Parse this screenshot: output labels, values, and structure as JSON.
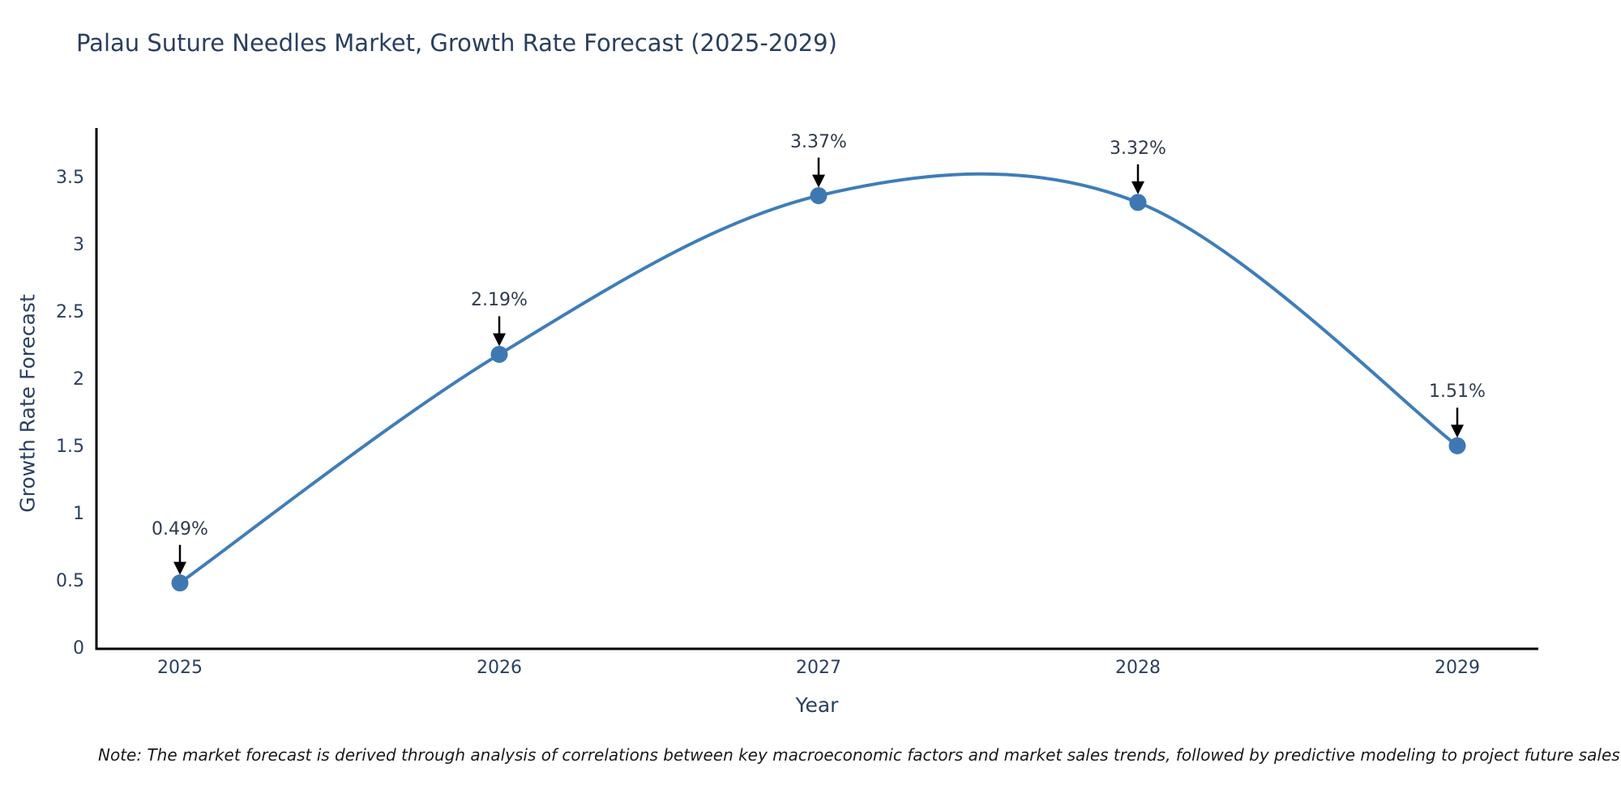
{
  "title": "Palau Suture Needles Market, Growth Rate Forecast (2025-2029)",
  "note": "Note: The market forecast is derived through analysis of correlations between key macroeconomic factors and market sales trends, followed by predictive modeling to project future sales",
  "chart_data": {
    "type": "line",
    "title": "Palau Suture Needles Market, Growth Rate Forecast (2025-2029)",
    "x": [
      2025,
      2026,
      2027,
      2028,
      2029
    ],
    "categories": [
      "2025",
      "2026",
      "2027",
      "2028",
      "2029"
    ],
    "series": [
      {
        "name": "Growth Rate Forecast",
        "values": [
          0.49,
          2.19,
          3.37,
          3.32,
          1.51
        ]
      }
    ],
    "point_labels": [
      "0.49%",
      "2.19%",
      "3.37%",
      "3.32%",
      "1.51%"
    ],
    "xlabel": "Year",
    "ylabel": "Growth Rate Forecast",
    "ylim": [
      0,
      3.9
    ],
    "yticks": [
      0,
      0.5,
      1,
      1.5,
      2,
      2.5,
      3,
      3.5
    ],
    "ytick_labels": [
      "0",
      "0.5",
      "1",
      "1.5",
      "2",
      "2.5",
      "3",
      "3.5"
    ],
    "grid": false,
    "legend": "none",
    "line_shape": "spline",
    "colors": {
      "line": "#3f7db8",
      "marker": "#3e78b2",
      "arrow": "#000000",
      "axis": "#000000",
      "text": "#2a3f5f"
    }
  }
}
